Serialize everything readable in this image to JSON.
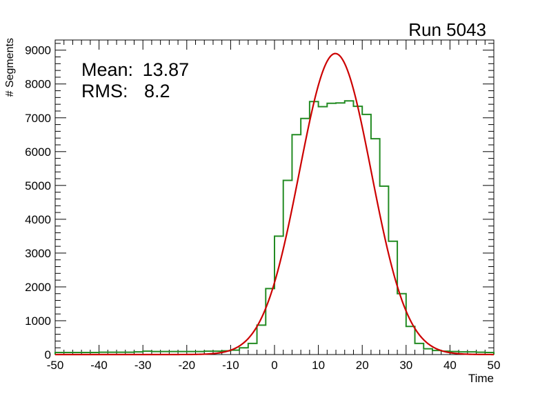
{
  "chart_data": {
    "type": "histogram",
    "title": "Run 5043",
    "xlabel": "Time",
    "ylabel": "# Segments",
    "xlim": [
      -50,
      50
    ],
    "ylim": [
      0,
      9300
    ],
    "x_ticks": [
      -50,
      -40,
      -30,
      -20,
      -10,
      0,
      10,
      20,
      30,
      40,
      50
    ],
    "y_ticks": [
      0,
      1000,
      2000,
      3000,
      4000,
      5000,
      6000,
      7000,
      8000,
      9000
    ],
    "stats": {
      "mean_label": "Mean:",
      "mean_value": "13.87",
      "rms_label": "RMS:",
      "rms_value": "8.2"
    },
    "histogram": {
      "name": "segments",
      "color": "#228b22",
      "bin_edges": [
        -50,
        -48,
        -46,
        -44,
        -42,
        -40,
        -38,
        -36,
        -34,
        -32,
        -30,
        -28,
        -26,
        -24,
        -22,
        -20,
        -18,
        -16,
        -14,
        -12,
        -10,
        -8,
        -6,
        -4,
        -2,
        0,
        2,
        4,
        6,
        8,
        10,
        12,
        14,
        16,
        18,
        20,
        22,
        24,
        26,
        28,
        30,
        32,
        34,
        36,
        38,
        40,
        42,
        44,
        46,
        48,
        50
      ],
      "counts": [
        60,
        60,
        60,
        60,
        60,
        70,
        70,
        70,
        70,
        80,
        100,
        90,
        90,
        90,
        90,
        90,
        90,
        100,
        100,
        110,
        130,
        200,
        330,
        870,
        1950,
        3500,
        5150,
        6500,
        6980,
        7480,
        7330,
        7430,
        7440,
        7500,
        7340,
        7100,
        6380,
        4980,
        3350,
        1800,
        830,
        330,
        170,
        120,
        100,
        90,
        80,
        80,
        70,
        60
      ]
    },
    "fit": {
      "name": "gaussian-fit",
      "color": "#cc0000",
      "type": "gaussian",
      "amplitude": 8900,
      "mean": 13.87,
      "sigma": 8.2,
      "range": [
        -50,
        50
      ]
    }
  }
}
